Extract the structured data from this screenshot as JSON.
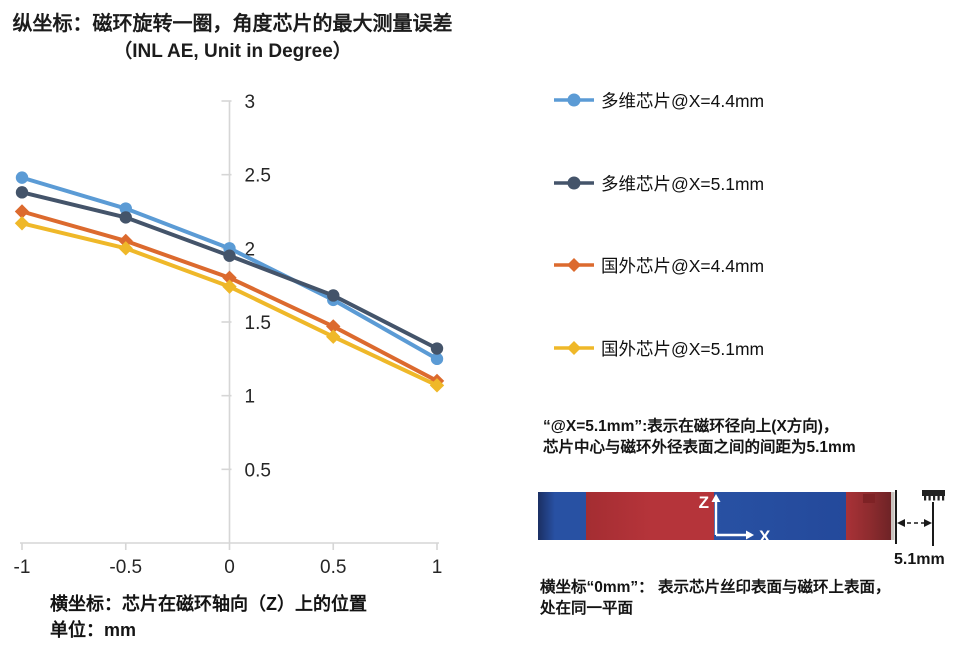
{
  "title": {
    "line1": "纵坐标：磁环旋转一圈，角度芯片的最大测量误差",
    "line2": "（INL AE, Unit in Degree）"
  },
  "chart_data": {
    "type": "line",
    "x": [
      -1,
      -0.5,
      0,
      0.5,
      1
    ],
    "series": [
      {
        "name": "多维芯片@X=4.4mm",
        "color": "#5B9BD5",
        "marker": "circle",
        "values": [
          2.48,
          2.27,
          2.0,
          1.65,
          1.25
        ]
      },
      {
        "name": "多维芯片@X=5.1mm",
        "color": "#44546A",
        "marker": "circle",
        "values": [
          2.38,
          2.21,
          1.95,
          1.68,
          1.32
        ]
      },
      {
        "name": "国外芯片@X=4.4mm",
        "color": "#DC6A2E",
        "marker": "diamond",
        "values": [
          2.25,
          2.05,
          1.8,
          1.47,
          1.1
        ]
      },
      {
        "name": "国外芯片@X=5.1mm",
        "color": "#EFB829",
        "marker": "diamond",
        "values": [
          2.17,
          2.0,
          1.74,
          1.4,
          1.07
        ]
      }
    ],
    "x_ticks": [
      "-1",
      "-0.5",
      "0",
      "0.5",
      "1"
    ],
    "y_ticks": [
      "0.5",
      "1",
      "1.5",
      "2",
      "2.5",
      "3"
    ],
    "xlim": [
      -1,
      1
    ],
    "ylim": [
      0,
      3
    ],
    "grid": "off",
    "axis_color": "#D6D6D6",
    "tick_label_color": "#262626",
    "legend_position": "right",
    "title": "纵坐标：磁环旋转一圈，角度芯片的最大测量误差（INL AE, Unit in Degree）",
    "xlabel": "芯片在磁环轴向（Z）上的位置，单位 mm",
    "ylabel": "INL AE (Degree)"
  },
  "x_caption": {
    "line1": "横坐标：芯片在磁环轴向（Z）上的位置",
    "line2": "单位：mm"
  },
  "notes": {
    "x_note_line1": "“@X=5.1mm”:表示在磁环径向上(X方向)，",
    "x_note_line2": "芯片中心与磁环外径表面之间的间距为5.1mm",
    "zero_note_line1": "横坐标“0mm”： 表示芯片丝印表面与磁环上表面，",
    "zero_note_line2": "处在同一平面"
  },
  "diagram": {
    "z_axis_label": "Z",
    "x_axis_label": "X",
    "gap_label": "5.1mm",
    "magnet_blue": "#2851A3",
    "magnet_blue_dark": "#1B2F63",
    "magnet_red": "#B5343A",
    "magnet_red_dark": "#6E2326",
    "edge_strip": "#C9C3BE",
    "icons": {
      "chip": "chip-side-view-icon",
      "dimension_arrow": "double-arrow-icon",
      "coord_axes": "zx-axes-icon"
    }
  }
}
